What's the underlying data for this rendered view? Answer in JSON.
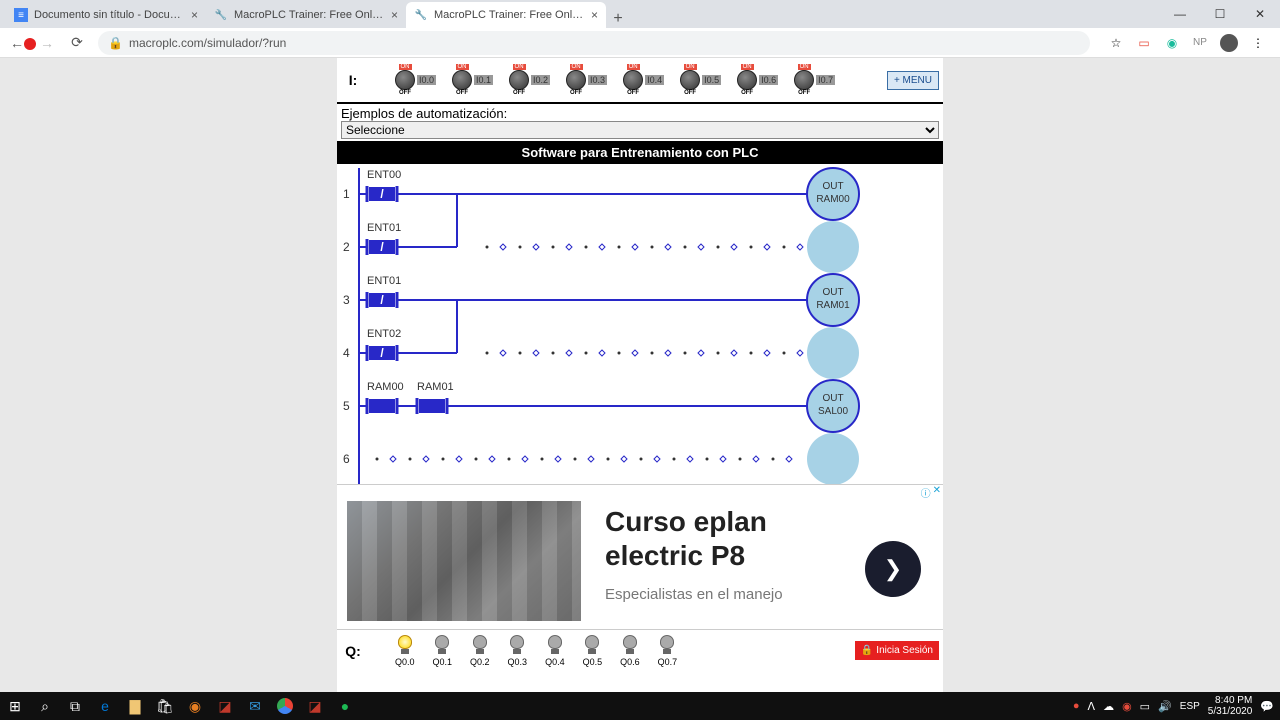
{
  "browser": {
    "tabs": [
      {
        "title": "Documento sin título - Documen",
        "favicon": "📄"
      },
      {
        "title": "MacroPLC Trainer: Free Online PL",
        "favicon": "⚙"
      },
      {
        "title": "MacroPLC Trainer: Free Online PL",
        "favicon": "⚙"
      }
    ],
    "url": "macroplc.com/simulador/?run",
    "extensions": [
      "☆",
      "▭",
      "◉",
      "NP",
      "◐",
      "⋮"
    ]
  },
  "inputs": {
    "label": "I:",
    "switches": [
      "I0.0",
      "I0.1",
      "I0.2",
      "I0.3",
      "I0.4",
      "I0.5",
      "I0.6",
      "I0.7"
    ],
    "on": "ON",
    "off": "OFF",
    "menu": "+ MENU"
  },
  "examples": {
    "label": "Ejemplos de automatización:",
    "selected": "Seleccione"
  },
  "titlebar": "Software para Entrenamiento con PLC",
  "ladder": {
    "rungs": [
      {
        "n": "1",
        "contacts": [
          {
            "label": "ENT00",
            "type": "nc"
          }
        ],
        "coil": {
          "top": "OUT",
          "bot": "RAM00"
        }
      },
      {
        "n": "2",
        "contacts": [
          {
            "label": "ENT01",
            "type": "nc"
          }
        ],
        "coil": null,
        "branch_to": 0
      },
      {
        "n": "3",
        "contacts": [
          {
            "label": "ENT01",
            "type": "nc"
          }
        ],
        "coil": {
          "top": "OUT",
          "bot": "RAM01"
        }
      },
      {
        "n": "4",
        "contacts": [
          {
            "label": "ENT02",
            "type": "nc"
          }
        ],
        "coil": null,
        "branch_to": 2
      },
      {
        "n": "5",
        "contacts": [
          {
            "label": "RAM00",
            "type": "no"
          },
          {
            "label": "RAM01",
            "type": "no"
          }
        ],
        "coil": {
          "top": "OUT",
          "bot": "SAL00"
        }
      },
      {
        "n": "6",
        "contacts": [],
        "coil": null
      }
    ],
    "colors": {
      "rail": "#2828c8",
      "fill": "#2828c8",
      "coil_fill": "#a7d2e6",
      "coil_stroke": "#2828c8"
    }
  },
  "ad": {
    "title1": "Curso eplan",
    "title2": "electric P8",
    "sub": "Especialistas en el manejo"
  },
  "outputs": {
    "label": "Q:",
    "bulbs": [
      {
        "label": "Q0.0",
        "lit": true
      },
      {
        "label": "Q0.1",
        "lit": false
      },
      {
        "label": "Q0.2",
        "lit": false
      },
      {
        "label": "Q0.3",
        "lit": false
      },
      {
        "label": "Q0.4",
        "lit": false
      },
      {
        "label": "Q0.5",
        "lit": false
      },
      {
        "label": "Q0.6",
        "lit": false
      },
      {
        "label": "Q0.7",
        "lit": false
      }
    ],
    "login": "Inicia Sesión"
  },
  "tray": {
    "lang": "ESP",
    "time": "8:40 PM",
    "date": "5/31/2020"
  }
}
